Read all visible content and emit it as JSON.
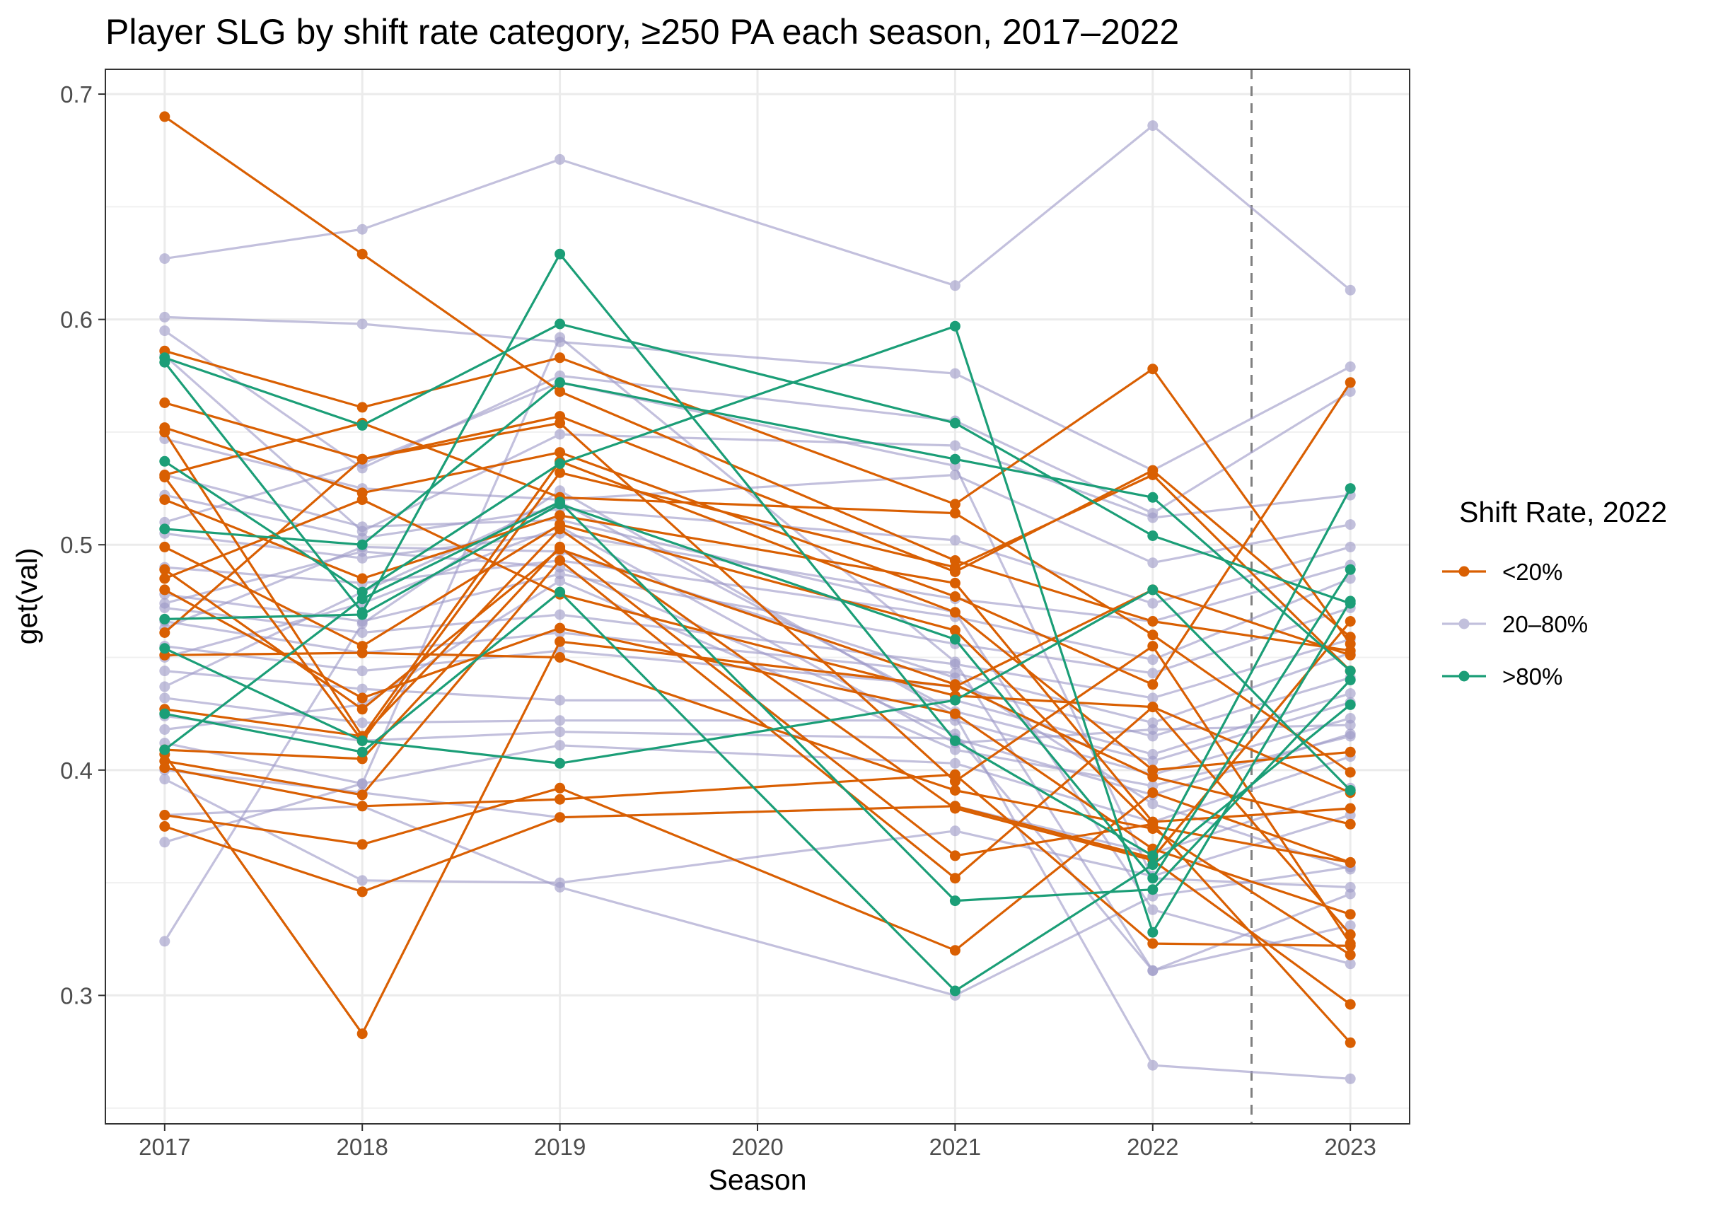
{
  "chart_data": {
    "type": "line",
    "title": "Player SLG by shift rate category, ≥250 PA each season, 2017–2022",
    "xlabel": "Season",
    "ylabel": "get(val)",
    "x": [
      2017,
      2018,
      2019,
      2020,
      2021,
      2022,
      2023
    ],
    "x_tick_labels": [
      "2017",
      "2018",
      "2019",
      "2020",
      "2021",
      "2022",
      "2023"
    ],
    "y_ticks": [
      0.3,
      0.4,
      0.5,
      0.6,
      0.7
    ],
    "y_tick_labels": [
      "0.3",
      "0.4",
      "0.5",
      "0.6",
      "0.7"
    ],
    "xlim": [
      2016.7,
      2023.3
    ],
    "ylim": [
      0.243,
      0.711
    ],
    "grid": true,
    "reference_line": {
      "x": 2022.5,
      "style": "dashed",
      "color": "#808080"
    },
    "legend": {
      "title": "Shift Rate, 2022",
      "position": "right",
      "entries": [
        {
          "label": "<20%",
          "color": "#D95F02"
        },
        {
          "label": "20–80%",
          "color": "#9E9AC8"
        },
        {
          "label": ">80%",
          "color": "#1B9E77"
        }
      ]
    },
    "series": [
      {
        "group": "<20%",
        "values": [
          0.69,
          0.629,
          0.568,
          null,
          0.493,
          0.466,
          0.453
        ]
      },
      {
        "group": "<20%",
        "values": [
          0.586,
          0.561,
          0.583,
          null,
          0.518,
          0.578,
          0.456
        ]
      },
      {
        "group": "<20%",
        "values": [
          0.563,
          0.538,
          0.557,
          null,
          0.488,
          0.533,
          0.459
        ]
      },
      {
        "group": "<20%",
        "values": [
          0.552,
          0.523,
          0.541,
          null,
          0.477,
          0.438,
          0.572
        ]
      },
      {
        "group": "<20%",
        "values": [
          0.55,
          0.415,
          0.537,
          null,
          0.47,
          0.4,
          0.408
        ]
      },
      {
        "group": "<20%",
        "values": [
          0.531,
          0.554,
          0.521,
          null,
          0.514,
          0.46,
          0.399
        ]
      },
      {
        "group": "<20%",
        "values": [
          0.52,
          0.485,
          0.513,
          null,
          0.483,
          0.377,
          0.383
        ]
      },
      {
        "group": "<20%",
        "values": [
          0.499,
          0.455,
          0.509,
          null,
          0.462,
          0.375,
          0.359
        ]
      },
      {
        "group": "<20%",
        "values": [
          0.489,
          0.427,
          0.498,
          null,
          0.438,
          0.397,
          0.376
        ]
      },
      {
        "group": "<20%",
        "values": [
          0.485,
          0.52,
          0.478,
          null,
          0.433,
          0.428,
          0.39
        ]
      },
      {
        "group": "<20%",
        "values": [
          0.48,
          0.432,
          0.463,
          null,
          0.425,
          0.365,
          0.336
        ]
      },
      {
        "group": "<20%",
        "values": [
          0.461,
          0.538,
          0.554,
          null,
          0.395,
          0.455,
          0.323
        ]
      },
      {
        "group": "<20%",
        "values": [
          0.451,
          0.452,
          0.45,
          null,
          0.391,
          0.374,
          0.318
        ]
      },
      {
        "group": "<20%",
        "values": [
          0.427,
          0.415,
          0.507,
          null,
          0.383,
          0.36,
          0.296
        ]
      },
      {
        "group": "<20%",
        "values": [
          0.409,
          0.405,
          0.499,
          null,
          0.362,
          0.376,
          0.279
        ]
      },
      {
        "group": "<20%",
        "values": [
          0.404,
          0.389,
          0.493,
          null,
          0.352,
          0.428,
          0.327
        ]
      },
      {
        "group": "<20%",
        "values": [
          0.401,
          0.384,
          0.387,
          null,
          0.398,
          0.323,
          0.322
        ]
      },
      {
        "group": "<20%",
        "values": [
          0.38,
          0.367,
          0.392,
          null,
          0.32,
          0.39,
          0.359
        ]
      },
      {
        "group": "<20%",
        "values": [
          0.375,
          0.346,
          0.379,
          null,
          0.384,
          0.361,
          0.466
        ]
      },
      {
        "group": "<20%",
        "values": [
          0.407,
          0.283,
          0.457,
          null,
          0.437,
          0.48,
          0.451
        ]
      },
      {
        "group": "<20%",
        "values": [
          0.53,
          0.413,
          0.532,
          null,
          0.49,
          0.531,
          0.444
        ]
      },
      {
        "group": "20–80%",
        "values": [
          0.627,
          0.64,
          0.671,
          null,
          0.615,
          0.686,
          0.613
        ]
      },
      {
        "group": "20–80%",
        "values": [
          0.601,
          0.598,
          0.59,
          null,
          0.576,
          0.533,
          0.579
        ]
      },
      {
        "group": "20–80%",
        "values": [
          0.595,
          0.534,
          0.575,
          null,
          0.555,
          0.514,
          0.568
        ]
      },
      {
        "group": "20–80%",
        "values": [
          0.584,
          0.506,
          0.549,
          null,
          0.544,
          0.512,
          0.522
        ]
      },
      {
        "group": "20–80%",
        "values": [
          0.547,
          0.525,
          0.52,
          null,
          0.531,
          0.492,
          0.509
        ]
      },
      {
        "group": "20–80%",
        "values": [
          0.522,
          0.503,
          0.516,
          null,
          0.502,
          0.474,
          0.499
        ]
      },
      {
        "group": "20–80%",
        "values": [
          0.505,
          0.494,
          0.505,
          null,
          0.476,
          0.466,
          0.491
        ]
      },
      {
        "group": "20–80%",
        "values": [
          0.49,
          0.483,
          0.493,
          null,
          0.468,
          0.449,
          0.485
        ]
      },
      {
        "group": "20–80%",
        "values": [
          0.478,
          0.466,
          0.487,
          null,
          0.456,
          0.443,
          0.472
        ]
      },
      {
        "group": "20–80%",
        "values": [
          0.472,
          0.461,
          0.469,
          null,
          0.447,
          0.432,
          0.458
        ]
      },
      {
        "group": "20–80%",
        "values": [
          0.466,
          0.452,
          0.461,
          null,
          0.443,
          0.421,
          0.452
        ]
      },
      {
        "group": "20–80%",
        "values": [
          0.455,
          0.444,
          0.453,
          null,
          0.437,
          0.415,
          0.441
        ]
      },
      {
        "group": "20–80%",
        "values": [
          0.444,
          0.436,
          0.431,
          null,
          0.431,
          0.407,
          0.434
        ]
      },
      {
        "group": "20–80%",
        "values": [
          0.432,
          0.421,
          0.422,
          null,
          0.422,
          0.398,
          0.423
        ]
      },
      {
        "group": "20–80%",
        "values": [
          0.424,
          0.413,
          0.417,
          null,
          0.414,
          0.389,
          0.416
        ]
      },
      {
        "group": "20–80%",
        "values": [
          0.412,
          0.394,
          0.411,
          null,
          0.403,
          0.377,
          0.406
        ]
      },
      {
        "group": "20–80%",
        "values": [
          0.4,
          0.39,
          0.379,
          null,
          0.384,
          0.363,
          0.392
        ]
      },
      {
        "group": "20–80%",
        "values": [
          0.396,
          0.351,
          0.35,
          null,
          0.373,
          0.353,
          0.38
        ]
      },
      {
        "group": "20–80%",
        "values": [
          0.38,
          0.384,
          0.348,
          null,
          0.3,
          0.344,
          0.357
        ]
      },
      {
        "group": "20–80%",
        "values": [
          0.368,
          0.394,
          0.592,
          null,
          0.448,
          0.311,
          0.345
        ]
      },
      {
        "group": "20–80%",
        "values": [
          0.324,
          0.465,
          0.524,
          null,
          0.424,
          0.269,
          0.263
        ]
      },
      {
        "group": "20–80%",
        "values": [
          0.531,
          0.508,
          0.511,
          null,
          0.47,
          0.338,
          0.314
        ]
      },
      {
        "group": "20–80%",
        "values": [
          0.51,
          0.536,
          0.572,
          null,
          0.535,
          0.352,
          0.348
        ]
      },
      {
        "group": "20–80%",
        "values": [
          0.474,
          0.497,
          0.49,
          null,
          0.416,
          0.311,
          0.331
        ]
      },
      {
        "group": "20–80%",
        "values": [
          0.45,
          0.474,
          0.508,
          null,
          0.412,
          0.418,
          0.42
        ]
      },
      {
        "group": "20–80%",
        "values": [
          0.437,
          0.479,
          0.519,
          null,
          0.426,
          0.404,
          0.43
        ]
      },
      {
        "group": "20–80%",
        "values": [
          0.418,
          0.429,
          0.484,
          null,
          0.409,
          0.393,
          0.415
        ]
      },
      {
        "group": "20–80%",
        "values": [
          0.463,
          0.499,
          0.497,
          null,
          0.441,
          0.385,
          0.356
        ]
      },
      {
        "group": ">80%",
        "values": [
          0.583,
          0.553,
          0.598,
          null,
          0.554,
          0.504,
          0.474
        ]
      },
      {
        "group": ">80%",
        "values": [
          0.581,
          0.47,
          0.629,
          null,
          0.413,
          0.362,
          0.525
        ]
      },
      {
        "group": ">80%",
        "values": [
          0.537,
          0.479,
          0.536,
          null,
          0.597,
          0.328,
          0.475
        ]
      },
      {
        "group": ">80%",
        "values": [
          0.507,
          0.5,
          0.572,
          null,
          0.538,
          0.521,
          0.444
        ]
      },
      {
        "group": ">80%",
        "values": [
          0.467,
          0.469,
          0.518,
          null,
          0.458,
          0.352,
          0.489
        ]
      },
      {
        "group": ">80%",
        "values": [
          0.454,
          0.413,
          0.403,
          null,
          0.431,
          0.48,
          0.391
        ]
      },
      {
        "group": ">80%",
        "values": [
          0.425,
          0.408,
          0.479,
          null,
          0.302,
          0.358,
          0.429
        ]
      },
      {
        "group": ">80%",
        "values": [
          0.409,
          0.476,
          0.519,
          null,
          0.342,
          0.347,
          0.44
        ]
      }
    ]
  }
}
